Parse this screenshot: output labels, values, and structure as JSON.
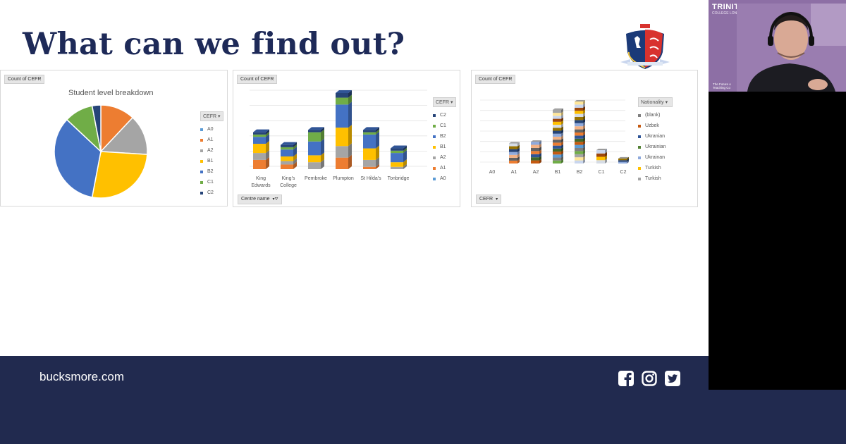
{
  "slide": {
    "title": "What can we find out?"
  },
  "panels": {
    "pie": {
      "field_tag": "Count of CEFR",
      "title": "Student level breakdown",
      "legend_header": "CEFR"
    },
    "bar": {
      "field_tag": "Count of CEFR",
      "legend_header": "CEFR",
      "axis_filter": "Centre name"
    },
    "nat": {
      "field_tag": "Count of CEFR",
      "legend_header": "Nationality",
      "axis_filter": "CEFR"
    }
  },
  "colors": {
    "A0": "#5b9bd5",
    "A1": "#ed7d31",
    "A2": "#a5a5a5",
    "B1": "#ffc000",
    "B2": "#4472c4",
    "C1": "#70ad47",
    "C2": "#264478",
    "footer_bg": "#212a4f",
    "title": "#1e2a58"
  },
  "chart_data": [
    {
      "type": "pie",
      "title": "Student level breakdown",
      "categories": [
        "A0",
        "A1",
        "A2",
        "B1",
        "B2",
        "C1",
        "C2"
      ],
      "values": [
        0,
        12,
        14,
        27,
        34,
        10,
        3
      ]
    },
    {
      "type": "bar",
      "stacked": true,
      "categories": [
        "King Edwards",
        "King's College",
        "Pembroke",
        "Plumpton",
        "St Hilda's",
        "Tonbridge"
      ],
      "category_lines": [
        [
          "King",
          "Edwards"
        ],
        [
          "King's",
          "College"
        ],
        [
          "Pembroke"
        ],
        [
          "Plumpton"
        ],
        [
          "St Hilda's"
        ],
        [
          "Tonbridge"
        ]
      ],
      "series": [
        {
          "name": "A0",
          "values": [
            0,
            0,
            0,
            0,
            0,
            0
          ]
        },
        {
          "name": "A1",
          "values": [
            8,
            4,
            0,
            10,
            2,
            0
          ]
        },
        {
          "name": "A2",
          "values": [
            6,
            3,
            6,
            10,
            6,
            2
          ]
        },
        {
          "name": "B1",
          "values": [
            8,
            4,
            6,
            16,
            10,
            4
          ]
        },
        {
          "name": "B2",
          "values": [
            6,
            6,
            12,
            20,
            12,
            8
          ]
        },
        {
          "name": "C1",
          "values": [
            2,
            2,
            8,
            6,
            2,
            2
          ]
        },
        {
          "name": "C2",
          "values": [
            2,
            2,
            2,
            4,
            2,
            2
          ]
        }
      ],
      "legend_order": [
        "C2",
        "C1",
        "B2",
        "B1",
        "A2",
        "A1",
        "A0"
      ]
    },
    {
      "type": "bar",
      "stacked": true,
      "categories": [
        "A0",
        "A1",
        "A2",
        "B1",
        "B2",
        "C1",
        "C2"
      ],
      "legend": [
        "(blank)",
        "Uzbek",
        "Ukranian",
        "Ukrainian",
        "Ukrainan",
        "Turkish",
        "Turkish"
      ],
      "legend_colors": [
        "#7f7f7f",
        "#c55a11",
        "#2f5597",
        "#548235",
        "#8faadc",
        "#ffc000",
        "#a5a5a5"
      ],
      "totals": [
        0,
        12,
        13,
        32,
        37,
        8,
        3
      ]
    }
  ],
  "footer": {
    "website": "bucksmore.com",
    "social": [
      "facebook-icon",
      "instagram-icon",
      "twitter-icon"
    ]
  },
  "video": {
    "brand": "TRINITY",
    "brand_sub": "COLLEGE LONDON",
    "caption_line1": "The Future o",
    "caption_line2": "Teaching Co"
  }
}
